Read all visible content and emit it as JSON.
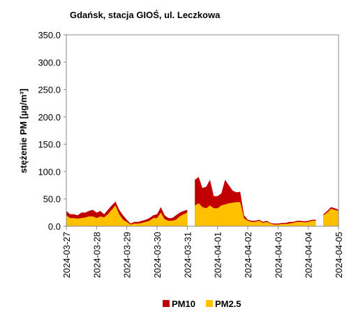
{
  "chart_data": {
    "type": "area",
    "title": "Gdańsk, stacja GIOŚ, ul. Leczkowa",
    "y_label": "stężenie PM [µg/m³]",
    "categories": [
      "2024-03-27",
      null,
      null,
      null,
      null,
      null,
      null,
      null,
      "2024-03-28",
      null,
      null,
      null,
      null,
      null,
      null,
      null,
      "2024-03-29",
      null,
      null,
      null,
      null,
      null,
      null,
      null,
      "2024-03-30",
      null,
      null,
      null,
      null,
      null,
      null,
      null,
      "2024-03-31",
      null,
      null,
      null,
      null,
      null,
      null,
      null,
      "2024-04-01",
      null,
      null,
      null,
      null,
      null,
      null,
      null,
      "2024-04-02",
      null,
      null,
      null,
      null,
      null,
      null,
      null,
      "2024-04-03",
      null,
      null,
      null,
      null,
      null,
      null,
      null,
      "2024-04-04",
      null,
      null,
      null,
      null,
      null,
      null,
      null,
      "2024-04-05"
    ],
    "series": [
      {
        "name": "PM10",
        "color": "#c00000",
        "values": [
          28,
          22,
          22,
          20,
          25,
          25,
          28,
          30,
          25,
          28,
          22,
          30,
          38,
          45,
          30,
          20,
          12,
          5,
          8,
          8,
          10,
          12,
          15,
          20,
          22,
          35,
          20,
          15,
          15,
          20,
          25,
          28,
          30,
          null,
          85,
          90,
          70,
          72,
          85,
          55,
          55,
          60,
          85,
          75,
          65,
          62,
          63,
          20,
          12,
          10,
          10,
          12,
          8,
          10,
          6,
          5,
          5,
          6,
          6,
          8,
          8,
          10,
          10,
          9,
          10,
          12,
          12,
          null,
          22,
          28,
          35,
          33,
          30
        ]
      },
      {
        "name": "PM2.5",
        "color": "#ffc000",
        "values": [
          20,
          15,
          15,
          14,
          15,
          16,
          18,
          18,
          15,
          18,
          16,
          22,
          30,
          38,
          22,
          12,
          8,
          3,
          5,
          5,
          6,
          8,
          10,
          15,
          15,
          25,
          13,
          10,
          10,
          12,
          18,
          22,
          25,
          null,
          38,
          42,
          35,
          33,
          38,
          33,
          33,
          38,
          40,
          42,
          43,
          44,
          44,
          15,
          10,
          8,
          8,
          10,
          6,
          8,
          5,
          3,
          3,
          4,
          4,
          5,
          6,
          8,
          8,
          7,
          8,
          10,
          10,
          null,
          20,
          25,
          32,
          30,
          28
        ]
      }
    ],
    "ylim": [
      0,
      350
    ],
    "yticks": [
      {
        "value": 0,
        "label": "0.0"
      },
      {
        "value": 50,
        "label": "50.0"
      },
      {
        "value": 100,
        "label": "100.0"
      },
      {
        "value": 150,
        "label": "150.0"
      },
      {
        "value": 200,
        "label": "200.0"
      },
      {
        "value": 250,
        "label": "250.0"
      },
      {
        "value": 300,
        "label": "300.0"
      },
      {
        "value": 350,
        "label": "350.0"
      }
    ],
    "grid": false,
    "legend": "bottom"
  }
}
